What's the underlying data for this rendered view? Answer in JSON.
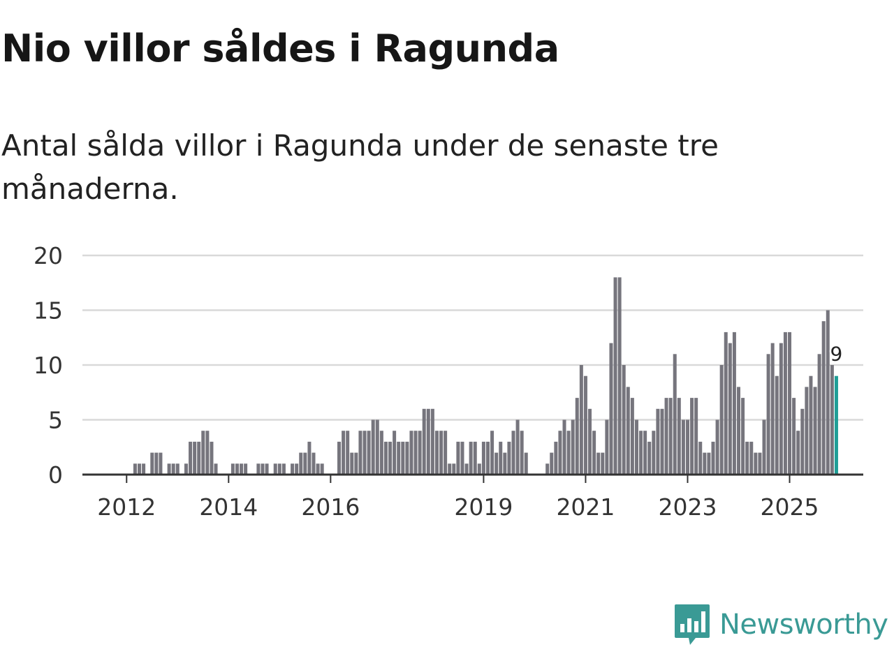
{
  "header": {
    "title": "Nio villor såldes i Ragunda",
    "subtitle": "Antal sålda villor i Ragunda under de senaste tre månaderna."
  },
  "brand": {
    "name": "Newsworthy",
    "color": "#3a9a95"
  },
  "colors": {
    "bar": "#76757d",
    "highlight": "#1f9e97",
    "grid": "#d9d9d9",
    "axis": "#333333"
  },
  "chart_data": {
    "type": "bar",
    "title": "Nio villor såldes i Ragunda",
    "subtitle": "Antal sålda villor i Ragunda under de senaste tre månaderna.",
    "xlabel": "",
    "ylabel": "",
    "ylim": [
      0,
      20
    ],
    "yticks": [
      0,
      5,
      10,
      15,
      20
    ],
    "grid": true,
    "first_month": "2011-01",
    "x_ticks": [
      {
        "label": "2012",
        "index": 9
      },
      {
        "label": "2014",
        "index": 33
      },
      {
        "label": "2016",
        "index": 57
      },
      {
        "label": "2019",
        "index": 93
      },
      {
        "label": "2021",
        "index": 117
      },
      {
        "label": "2023",
        "index": 141
      },
      {
        "label": "2025",
        "index": 165
      }
    ],
    "values": [
      0,
      0,
      0,
      0,
      0,
      0,
      0,
      0,
      0,
      0,
      0,
      1,
      1,
      1,
      0,
      2,
      2,
      2,
      0,
      1,
      1,
      1,
      0,
      1,
      3,
      3,
      3,
      4,
      4,
      3,
      1,
      0,
      0,
      0,
      1,
      1,
      1,
      1,
      0,
      0,
      1,
      1,
      1,
      0,
      1,
      1,
      1,
      0,
      1,
      1,
      2,
      2,
      3,
      2,
      1,
      1,
      0,
      0,
      0,
      3,
      4,
      4,
      2,
      2,
      4,
      4,
      4,
      5,
      5,
      4,
      3,
      3,
      4,
      3,
      3,
      3,
      4,
      4,
      4,
      6,
      6,
      6,
      4,
      4,
      4,
      1,
      1,
      3,
      3,
      1,
      3,
      3,
      1,
      3,
      3,
      4,
      2,
      3,
      2,
      3,
      4,
      5,
      4,
      2,
      0,
      0,
      0,
      0,
      1,
      2,
      3,
      4,
      5,
      4,
      5,
      7,
      10,
      9,
      6,
      4,
      2,
      2,
      5,
      12,
      18,
      18,
      10,
      8,
      7,
      5,
      4,
      4,
      3,
      4,
      6,
      6,
      7,
      7,
      11,
      7,
      5,
      5,
      7,
      7,
      3,
      2,
      2,
      3,
      5,
      10,
      13,
      12,
      13,
      8,
      7,
      3,
      3,
      2,
      2,
      5,
      11,
      12,
      9,
      12,
      13,
      13,
      7,
      4,
      6,
      8,
      9,
      8,
      11,
      14,
      15,
      10,
      9
    ],
    "highlight_last": true,
    "last_value_label": "9"
  }
}
